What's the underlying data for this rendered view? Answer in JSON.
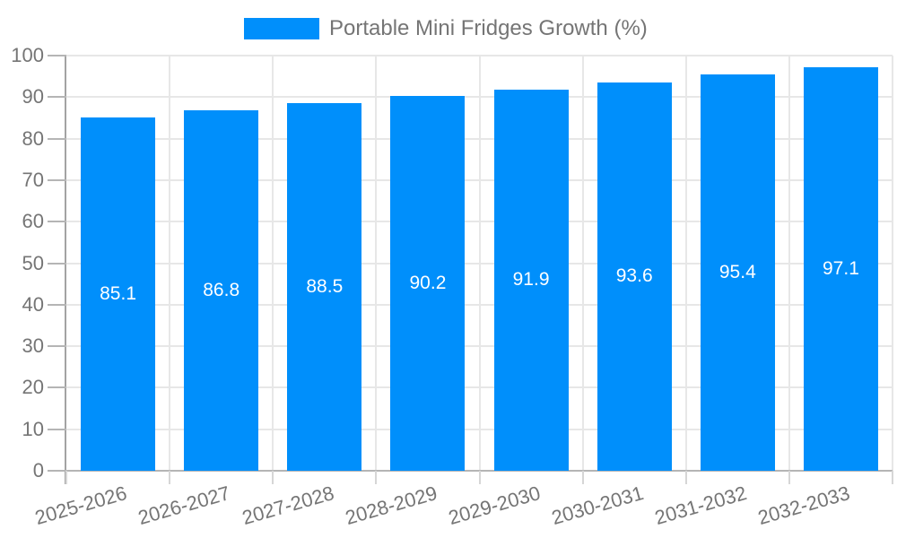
{
  "legend": {
    "label": "Portable Mini Fridges Growth (%)"
  },
  "chart_data": {
    "type": "bar",
    "title": "Portable Mini Fridges Growth (%)",
    "categories": [
      "2025-2026",
      "2026-2027",
      "2027-2028",
      "2028-2029",
      "2029-2030",
      "2030-2031",
      "2031-2032",
      "2032-2033"
    ],
    "values": [
      85.1,
      86.8,
      88.5,
      90.2,
      91.9,
      93.6,
      95.4,
      97.1
    ],
    "value_labels": [
      "85.1",
      "86.8",
      "88.5",
      "90.2",
      "91.9",
      "93.6",
      "95.4",
      "97.1"
    ],
    "xlabel": "",
    "ylabel": "",
    "ylim": [
      0,
      100
    ],
    "ytick_step": 10,
    "ytick_labels": [
      "0",
      "10",
      "20",
      "30",
      "40",
      "50",
      "60",
      "70",
      "80",
      "90",
      "100"
    ],
    "grid": true,
    "legend_position": "top-center",
    "bar_color": "#008FFB",
    "value_label_color": "#ffffff",
    "axis_text_color": "#757575"
  }
}
